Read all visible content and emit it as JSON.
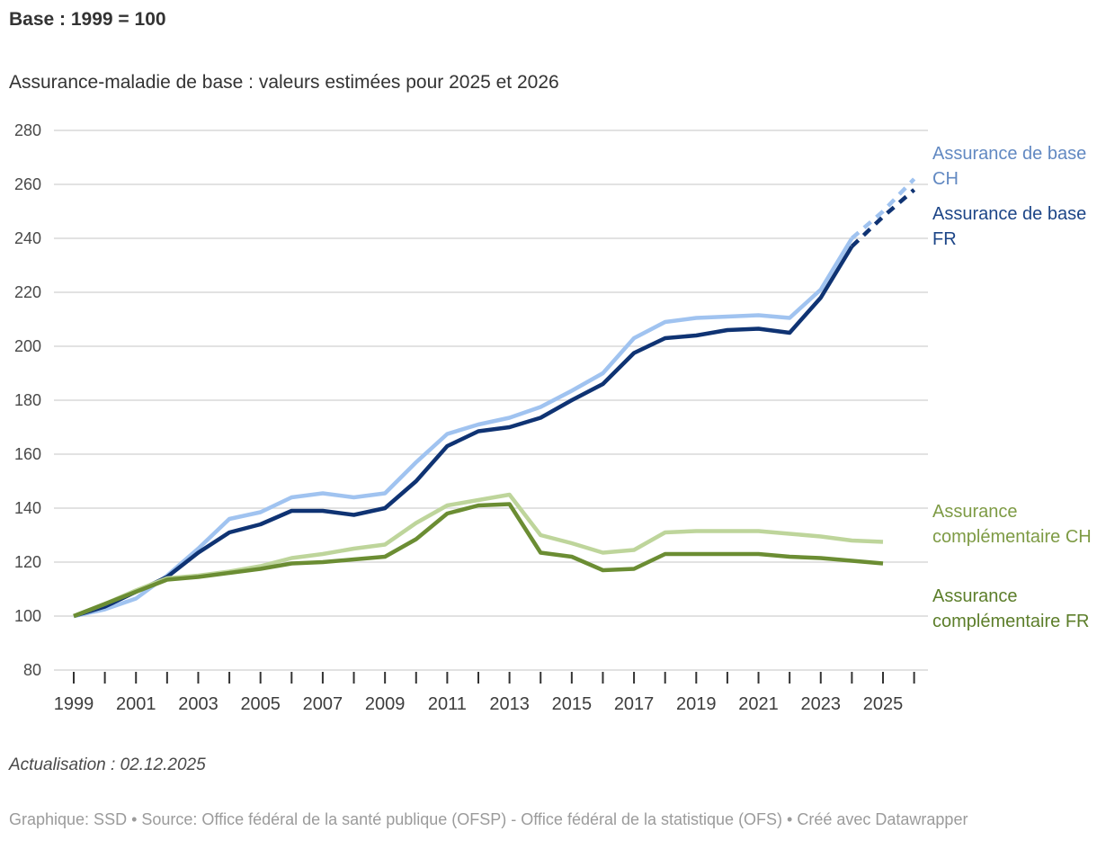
{
  "header": {
    "title": "Base : 1999 = 100",
    "subtitle": "Assurance-maladie de base : valeurs estimées pour 2025 et 2026"
  },
  "footer": {
    "update": "Actualisation : 02.12.2025",
    "byline": "Graphique: SSD • Source: Office fédéral de la santé publique (OFSP) - Office fédéral de la statistique (OFS) • Créé avec Datawrapper"
  },
  "colors": {
    "gridline": "#d9d9d9",
    "tick": "#333333",
    "y_label": "#494949",
    "x_label": "#3d3d3d",
    "text": "#333333",
    "byline": "#9b9b9b"
  },
  "chart_data": {
    "type": "line",
    "title": "Assurance-maladie de base : valeurs estimées pour 2025 et 2026",
    "note": "Base : 1999 = 100",
    "x": [
      1999,
      2000,
      2001,
      2002,
      2003,
      2004,
      2005,
      2006,
      2007,
      2008,
      2009,
      2010,
      2011,
      2012,
      2013,
      2014,
      2015,
      2016,
      2017,
      2018,
      2019,
      2020,
      2021,
      2022,
      2023,
      2024,
      2025,
      2026
    ],
    "x_tick_labels": [
      1999,
      2001,
      2003,
      2005,
      2007,
      2009,
      2011,
      2013,
      2015,
      2017,
      2019,
      2021,
      2023,
      2025
    ],
    "ylim": [
      80,
      280
    ],
    "yticks": [
      80,
      100,
      120,
      140,
      160,
      180,
      200,
      220,
      240,
      260,
      280
    ],
    "grid": true,
    "legend_position": "right",
    "estimated_years": [
      2025,
      2026
    ],
    "series": [
      {
        "name": "Assurance de base CH",
        "color": "#a0c3f0",
        "label_color": "#6289c2",
        "dashed_from": 2024,
        "values": [
          100,
          102.5,
          106.5,
          115,
          125,
          136,
          138.5,
          144,
          145.5,
          144,
          145.5,
          157,
          167.5,
          171,
          173.5,
          177.5,
          183.5,
          190,
          203,
          209,
          210.5,
          211,
          211.5,
          210.5,
          221,
          240,
          250,
          262
        ]
      },
      {
        "name": "Assurance de base FR",
        "color": "#0f3373",
        "label_color": "#1c4587",
        "dashed_from": 2024,
        "values": [
          100,
          103.5,
          109,
          114.5,
          123.5,
          131,
          134,
          139,
          139,
          137.5,
          140,
          150,
          163,
          168.5,
          170,
          173.5,
          180,
          186,
          197.5,
          203,
          204,
          206,
          206.5,
          205,
          218,
          237,
          248,
          258
        ]
      },
      {
        "name": "Assurance complémentaire CH",
        "color": "#bed59b",
        "label_color": "#7e9b45",
        "values": [
          100,
          104.5,
          109.5,
          114,
          115,
          116.5,
          118.5,
          121.5,
          123,
          125,
          126.5,
          134.5,
          141,
          143,
          145,
          130,
          127,
          123.5,
          124.5,
          131,
          131.5,
          131.5,
          131.5,
          130.5,
          129.5,
          128,
          127.5
        ]
      },
      {
        "name": "Assurance complémentaire FR",
        "color": "#6b8d33",
        "label_color": "#5c7e2a",
        "values": [
          100,
          104.5,
          109,
          113.5,
          114.5,
          116,
          117.5,
          119.5,
          120,
          121,
          122,
          128.5,
          138,
          141,
          141.5,
          123.5,
          122,
          117,
          117.5,
          123,
          123,
          123,
          123,
          122,
          121.5,
          120.5,
          119.5
        ]
      }
    ]
  }
}
